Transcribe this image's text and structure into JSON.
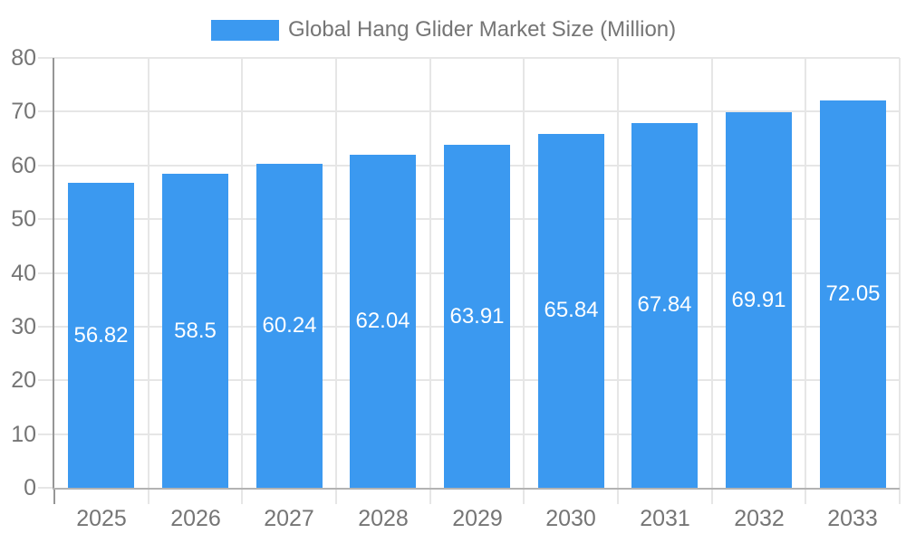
{
  "legend": {
    "label": "Global Hang Glider Market Size (Million)"
  },
  "colors": {
    "bar": "#3b99f0",
    "axis_text": "#757575",
    "bar_label_text": "#ffffff",
    "grid_line": "#e6e6e6",
    "x_axis_line": "#b3b3b3",
    "y_axis_line": "#969696"
  },
  "chart_data": {
    "type": "bar",
    "title": "",
    "legend_entries": [
      "Global Hang Glider Market Size (Million)"
    ],
    "legend_position": "top-center",
    "categories": [
      "2025",
      "2026",
      "2027",
      "2028",
      "2029",
      "2030",
      "2031",
      "2032",
      "2033"
    ],
    "values": [
      56.82,
      58.5,
      60.24,
      62.04,
      63.91,
      65.84,
      67.84,
      69.91,
      72.05
    ],
    "value_labels": [
      "56.82",
      "58.5",
      "60.24",
      "62.04",
      "63.91",
      "65.84",
      "67.84",
      "69.91",
      "72.05"
    ],
    "xlabel": "",
    "ylabel": "",
    "ylim": [
      0,
      80
    ],
    "yticks": [
      0,
      10,
      20,
      30,
      40,
      50,
      60,
      70,
      80
    ],
    "grid": true
  }
}
